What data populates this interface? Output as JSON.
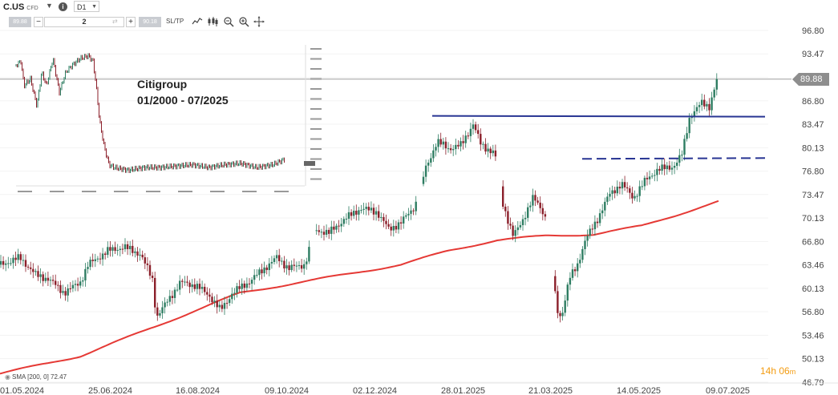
{
  "header": {
    "symbol": "C.US",
    "symbol_type": "CFD",
    "timeframe": "D1",
    "info_icon": "info-icon"
  },
  "order_bar": {
    "sell_price": "89.88",
    "quantity": "2",
    "buy_price": "90.18",
    "minus": "−",
    "plus": "+",
    "sltp_label": "SL/TP",
    "tools": [
      "line-chart-icon",
      "candles-icon",
      "zoom-out-icon",
      "zoom-in-icon",
      "crosshair-icon"
    ]
  },
  "last_price": "89.88",
  "countdown": {
    "main": "14h 06",
    "unit": "m"
  },
  "indicator_legend": "SMA [200, 0] 72.47",
  "annotation": {
    "line1": "Citigroup",
    "line2": "01/2000 - 07/2025"
  },
  "colors": {
    "up": "#2e7d62",
    "down": "#8b1f2a",
    "sma": "#e53935",
    "trendline": "#283593",
    "tag": "#8e8e8e",
    "countdown": "#f39c12"
  },
  "chart_data": {
    "type": "candlestick",
    "ylim": [
      46.79,
      96.8
    ],
    "y_ticks": [
      96.8,
      93.47,
      90.13,
      86.8,
      83.47,
      80.13,
      76.8,
      73.47,
      70.13,
      66.8,
      63.46,
      60.13,
      56.8,
      53.46,
      50.13,
      46.79
    ],
    "x_ticks": [
      "01.05.2024",
      "25.06.2024",
      "16.08.2024",
      "09.10.2024",
      "02.12.2024",
      "28.01.2025",
      "21.03.2025",
      "14.05.2025",
      "09.07.2025"
    ],
    "close_path": [
      [
        0,
        63.5
      ],
      [
        25,
        64.5
      ],
      [
        45,
        62.0
      ],
      [
        60,
        61.5
      ],
      [
        80,
        59.5
      ],
      [
        100,
        61.0
      ],
      [
        110,
        63.5
      ],
      [
        135,
        65.5
      ],
      [
        155,
        66.0
      ],
      [
        175,
        65.0
      ],
      [
        190,
        61.5
      ],
      [
        195,
        56.0
      ],
      [
        210,
        58.5
      ],
      [
        225,
        61.0
      ],
      [
        245,
        60.5
      ],
      [
        262,
        59.0
      ],
      [
        275,
        57.0
      ],
      [
        290,
        59.5
      ],
      [
        310,
        61.0
      ],
      [
        330,
        63.0
      ],
      [
        345,
        64.5
      ],
      [
        360,
        63.0
      ],
      [
        380,
        63.5
      ],
      [
        393,
        68.5
      ],
      [
        410,
        68.0
      ],
      [
        430,
        70.0
      ],
      [
        450,
        71.5
      ],
      [
        470,
        71.0
      ],
      [
        485,
        68.5
      ],
      [
        500,
        69.5
      ],
      [
        515,
        71.5
      ],
      [
        522,
        73.0
      ],
      [
        530,
        77.0
      ],
      [
        545,
        81.0
      ],
      [
        560,
        80.0
      ],
      [
        575,
        80.5
      ],
      [
        590,
        83.5
      ],
      [
        600,
        80.5
      ],
      [
        615,
        79.5
      ],
      [
        622,
        77.5
      ],
      [
        625,
        73.0
      ],
      [
        633,
        70.0
      ],
      [
        640,
        67.5
      ],
      [
        650,
        69.5
      ],
      [
        665,
        73.0
      ],
      [
        675,
        71.5
      ],
      [
        685,
        69.0
      ],
      [
        688,
        63.0
      ],
      [
        695,
        57.0
      ],
      [
        700,
        56.0
      ],
      [
        710,
        61.5
      ],
      [
        720,
        63.5
      ],
      [
        730,
        67.0
      ],
      [
        745,
        70.0
      ],
      [
        760,
        73.5
      ],
      [
        775,
        75.0
      ],
      [
        790,
        73.0
      ],
      [
        805,
        75.5
      ],
      [
        820,
        77.0
      ],
      [
        840,
        77.5
      ],
      [
        850,
        79.0
      ],
      [
        860,
        84.5
      ],
      [
        875,
        86.5
      ],
      [
        885,
        86.0
      ],
      [
        893,
        89.5
      ],
      [
        896,
        89.88
      ]
    ],
    "sma_200": {
      "name": "SMA [200, 0]",
      "last_value": 72.47,
      "path": [
        [
          0,
          48.0
        ],
        [
          100,
          50.5
        ],
        [
          200,
          55.0
        ],
        [
          300,
          59.5
        ],
        [
          400,
          61.5
        ],
        [
          500,
          63.5
        ],
        [
          560,
          65.5
        ],
        [
          620,
          67.0
        ],
        [
          680,
          67.6
        ],
        [
          740,
          67.8
        ],
        [
          800,
          69.0
        ],
        [
          850,
          70.8
        ],
        [
          896,
          72.47
        ]
      ]
    },
    "resistance_line": {
      "value": 84.6,
      "x_from": 539,
      "x_to": 954,
      "style": "solid"
    },
    "support_line": {
      "value": 78.6,
      "x_from": 726,
      "x_to": 957,
      "style": "dashed"
    }
  },
  "inset_chart": {
    "title": "Citigroup 01/2000 - 07/2025",
    "path": [
      [
        0,
        0.15
      ],
      [
        6,
        0.12
      ],
      [
        10,
        0.3
      ],
      [
        18,
        0.25
      ],
      [
        26,
        0.45
      ],
      [
        32,
        0.2
      ],
      [
        38,
        0.3
      ],
      [
        46,
        0.1
      ],
      [
        54,
        0.35
      ],
      [
        62,
        0.2
      ],
      [
        70,
        0.15
      ],
      [
        80,
        0.1
      ],
      [
        90,
        0.08
      ],
      [
        96,
        0.12
      ],
      [
        100,
        0.3
      ],
      [
        104,
        0.55
      ],
      [
        110,
        0.75
      ],
      [
        116,
        0.88
      ],
      [
        122,
        0.9
      ],
      [
        140,
        0.92
      ],
      [
        160,
        0.9
      ],
      [
        180,
        0.9
      ],
      [
        200,
        0.89
      ],
      [
        220,
        0.88
      ],
      [
        240,
        0.9
      ],
      [
        260,
        0.88
      ],
      [
        280,
        0.87
      ],
      [
        300,
        0.9
      ],
      [
        320,
        0.88
      ],
      [
        335,
        0.84
      ]
    ]
  }
}
